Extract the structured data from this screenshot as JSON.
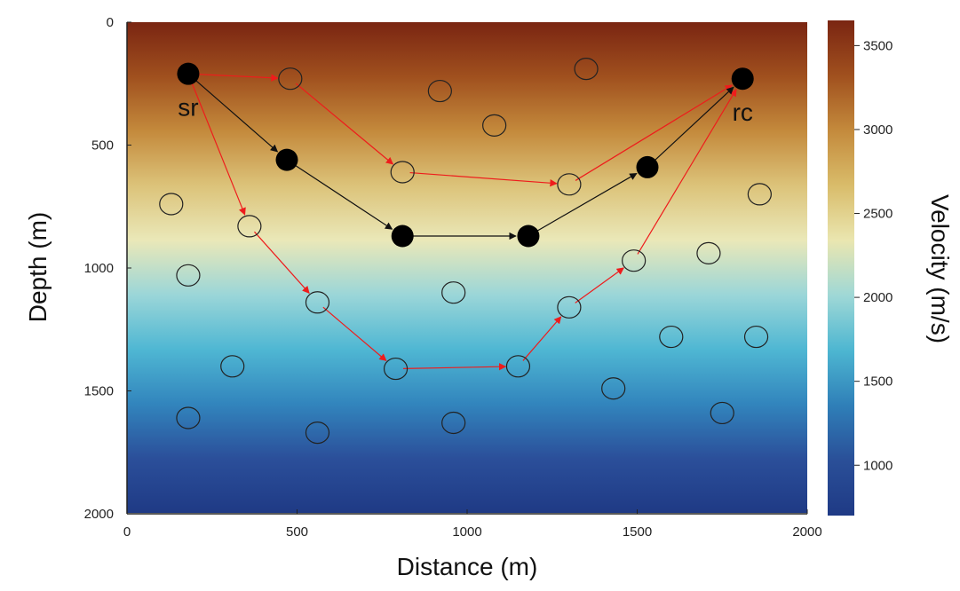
{
  "chart_data": {
    "type": "scatter",
    "xlabel": "Distance (m)",
    "ylabel": "Depth (m)",
    "xlim": [
      0,
      2000
    ],
    "ylim": [
      2000,
      0
    ],
    "x_ticks": [
      "0",
      "500",
      "1000",
      "1500",
      "2000"
    ],
    "y_ticks": [
      "0",
      "500",
      "1000",
      "1500",
      "2000"
    ],
    "colorbar": {
      "label": "Velocity (m/s)",
      "range": [
        700,
        3650
      ],
      "ticks": [
        "1000",
        "1500",
        "2000",
        "2500",
        "3000",
        "3500"
      ],
      "colors": [
        "#7a2512",
        "#a0501e",
        "#c48a3c",
        "#d9bc6a",
        "#eae6b0",
        "#9fd8d6",
        "#4db6d1",
        "#2f7fb8",
        "#2a4f98",
        "#1f3a85"
      ]
    },
    "background_gradient": {
      "direction": "depth",
      "colors": [
        "#7a2512",
        "#a0501e",
        "#c48a3c",
        "#dcc37a",
        "#eae8b8",
        "#9bd6d8",
        "#4fb7d3",
        "#3285bd",
        "#2b4f9a",
        "#1f3a85"
      ]
    },
    "open_nodes": [
      [
        480,
        230
      ],
      [
        920,
        280
      ],
      [
        1350,
        190
      ],
      [
        1080,
        420
      ],
      [
        810,
        610
      ],
      [
        1300,
        660
      ],
      [
        130,
        740
      ],
      [
        360,
        830
      ],
      [
        1860,
        700
      ],
      [
        180,
        1030
      ],
      [
        960,
        1100
      ],
      [
        1710,
        940
      ],
      [
        1490,
        970
      ],
      [
        560,
        1140
      ],
      [
        1300,
        1160
      ],
      [
        1600,
        1280
      ],
      [
        1850,
        1280
      ],
      [
        310,
        1400
      ],
      [
        790,
        1410
      ],
      [
        1150,
        1400
      ],
      [
        1430,
        1490
      ],
      [
        180,
        1610
      ],
      [
        560,
        1670
      ],
      [
        960,
        1630
      ],
      [
        1750,
        1590
      ]
    ],
    "filled_nodes": [
      [
        180,
        210
      ],
      [
        470,
        560
      ],
      [
        810,
        870
      ],
      [
        1180,
        870
      ],
      [
        1530,
        590
      ],
      [
        1810,
        230
      ]
    ],
    "node_labels": [
      {
        "text": "sr",
        "x": 180,
        "y": 380
      },
      {
        "text": "rc",
        "x": 1810,
        "y": 400
      }
    ],
    "black_path": [
      [
        180,
        210
      ],
      [
        470,
        560
      ],
      [
        810,
        870
      ],
      [
        1180,
        870
      ],
      [
        1530,
        590
      ],
      [
        1810,
        230
      ]
    ],
    "red_paths": [
      [
        [
          180,
          210
        ],
        [
          480,
          230
        ],
        [
          810,
          610
        ],
        [
          1300,
          660
        ],
        [
          1810,
          230
        ]
      ],
      [
        [
          180,
          210
        ],
        [
          360,
          830
        ],
        [
          560,
          1140
        ],
        [
          790,
          1410
        ],
        [
          1150,
          1400
        ],
        [
          1300,
          1160
        ],
        [
          1490,
          970
        ],
        [
          1810,
          230
        ]
      ]
    ],
    "series_colors": {
      "black_path": "#111111",
      "red_paths": "#ee1c1c",
      "open_node_stroke": "#222222",
      "filled_node": "#000000"
    }
  }
}
